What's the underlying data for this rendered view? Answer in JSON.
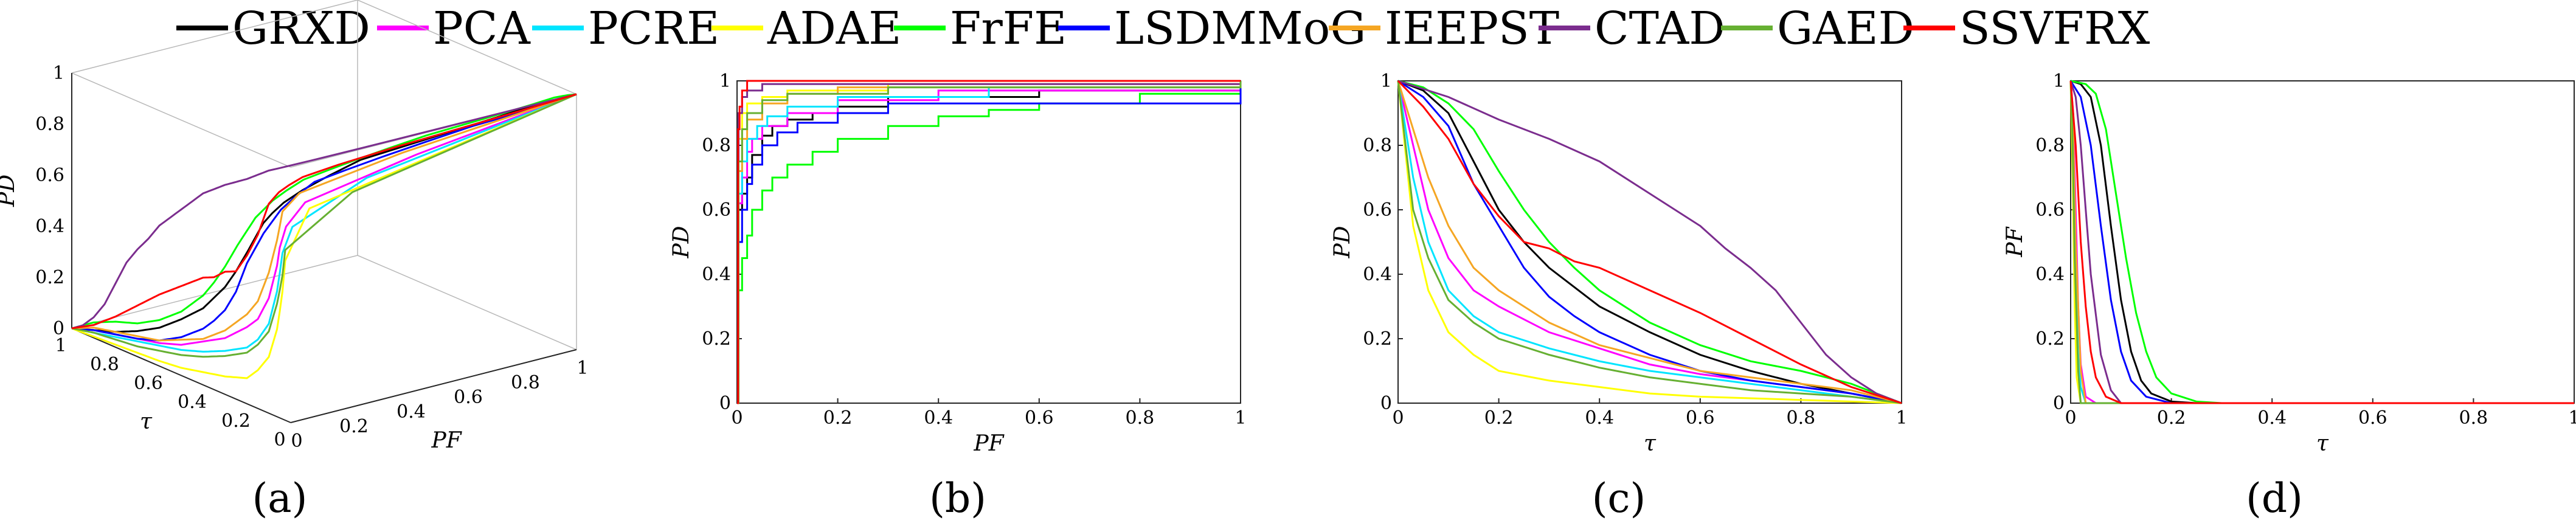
{
  "legend": [
    {
      "name": "GRXD",
      "color": "#000000"
    },
    {
      "name": "PCA",
      "color": "#ff00ff"
    },
    {
      "name": "PCRE",
      "color": "#00e5ff"
    },
    {
      "name": "ADAE",
      "color": "#ffff00"
    },
    {
      "name": "FrFE",
      "color": "#00ff00"
    },
    {
      "name": "LSDMMoG",
      "color": "#0000ff"
    },
    {
      "name": "IEEPST",
      "color": "#f5a623"
    },
    {
      "name": "CTAD",
      "color": "#7b2d8e"
    },
    {
      "name": "GAED",
      "color": "#66b032"
    },
    {
      "name": "SSVFRX",
      "color": "#ff0000"
    }
  ],
  "chart_data": [
    {
      "id": "a",
      "panel_label": "(a)",
      "type": "line",
      "subtype": "3d-roc",
      "x_label": "PF",
      "y_label": "τ",
      "z_label": "PD",
      "x_ticks": [
        "0",
        "0.2",
        "0.4",
        "0.6",
        "0.8",
        "1"
      ],
      "y_ticks": [
        "0",
        "0.2",
        "0.4",
        "0.6",
        "0.8",
        "1"
      ],
      "z_ticks": [
        "0",
        "0.2",
        "0.4",
        "0.6",
        "0.8",
        "1"
      ],
      "series": []
    },
    {
      "id": "b",
      "panel_label": "(b)",
      "type": "line",
      "x_label": "PF",
      "y_label": "PD",
      "xlim": [
        0,
        1
      ],
      "ylim": [
        0,
        1
      ],
      "x_ticks": [
        "0",
        "0.2",
        "0.4",
        "0.6",
        "0.8",
        "1"
      ],
      "y_ticks": [
        "0",
        "0.2",
        "0.4",
        "0.6",
        "0.8",
        "1"
      ],
      "series": [
        {
          "name": "GRXD",
          "x": [
            0,
            0.003,
            0.01,
            0.02,
            0.03,
            0.05,
            0.07,
            0.1,
            0.15,
            0.2,
            0.3,
            0.6,
            1.0
          ],
          "y": [
            0,
            0.6,
            0.65,
            0.7,
            0.77,
            0.83,
            0.86,
            0.88,
            0.9,
            0.92,
            0.95,
            0.97,
            1.0
          ]
        },
        {
          "name": "PCA",
          "x": [
            0,
            0.003,
            0.01,
            0.02,
            0.03,
            0.05,
            0.1,
            0.2,
            0.4,
            1.0
          ],
          "y": [
            0,
            0.62,
            0.7,
            0.78,
            0.82,
            0.86,
            0.9,
            0.94,
            0.97,
            1.0
          ]
        },
        {
          "name": "PCRE",
          "x": [
            0,
            0.003,
            0.01,
            0.02,
            0.04,
            0.06,
            0.1,
            0.2,
            0.5,
            1.0
          ],
          "y": [
            0,
            0.65,
            0.75,
            0.82,
            0.86,
            0.89,
            0.92,
            0.95,
            0.98,
            1.0
          ]
        },
        {
          "name": "ADAE",
          "x": [
            0,
            0.003,
            0.01,
            0.02,
            0.05,
            0.1,
            0.3,
            1.0
          ],
          "y": [
            0,
            0.82,
            0.9,
            0.93,
            0.95,
            0.97,
            0.99,
            1.0
          ]
        },
        {
          "name": "FrFE",
          "x": [
            0,
            0.003,
            0.01,
            0.02,
            0.03,
            0.05,
            0.07,
            0.1,
            0.15,
            0.2,
            0.3,
            0.4,
            0.5,
            0.6,
            0.8,
            1.0
          ],
          "y": [
            0,
            0.35,
            0.45,
            0.52,
            0.6,
            0.66,
            0.7,
            0.74,
            0.78,
            0.82,
            0.86,
            0.89,
            0.91,
            0.93,
            0.96,
            1.0
          ]
        },
        {
          "name": "LSDMMoG",
          "x": [
            0,
            0.003,
            0.01,
            0.02,
            0.03,
            0.05,
            0.08,
            0.12,
            0.2,
            0.3,
            1.0
          ],
          "y": [
            0,
            0.5,
            0.6,
            0.68,
            0.74,
            0.8,
            0.84,
            0.87,
            0.9,
            0.93,
            0.99
          ]
        },
        {
          "name": "IEEPST",
          "x": [
            0,
            0.003,
            0.01,
            0.02,
            0.05,
            0.1,
            0.2,
            1.0
          ],
          "y": [
            0,
            0.72,
            0.82,
            0.88,
            0.93,
            0.96,
            0.98,
            1.0
          ]
        },
        {
          "name": "CTAD",
          "x": [
            0,
            0.003,
            0.01,
            0.02,
            0.05,
            1.0
          ],
          "y": [
            0,
            0.9,
            0.95,
            0.97,
            0.99,
            1.0
          ]
        },
        {
          "name": "GAED",
          "x": [
            0,
            0.003,
            0.01,
            0.02,
            0.05,
            0.1,
            0.3,
            1.0
          ],
          "y": [
            0,
            0.75,
            0.85,
            0.9,
            0.94,
            0.96,
            0.98,
            1.0
          ]
        },
        {
          "name": "SSVFRX",
          "x": [
            0,
            0.002,
            0.005,
            0.01,
            0.02,
            1.0
          ],
          "y": [
            0,
            0.85,
            0.92,
            0.97,
            1.0,
            1.0
          ]
        }
      ]
    },
    {
      "id": "c",
      "panel_label": "(c)",
      "type": "line",
      "x_label": "τ",
      "y_label": "PD",
      "xlim": [
        0,
        1
      ],
      "ylim": [
        0,
        1
      ],
      "x_ticks": [
        "0",
        "0.2",
        "0.4",
        "0.6",
        "0.8",
        "1"
      ],
      "y_ticks": [
        "0",
        "0.2",
        "0.4",
        "0.6",
        "0.8",
        "1"
      ],
      "series": [
        {
          "name": "GRXD",
          "x": [
            0,
            0.05,
            0.1,
            0.15,
            0.2,
            0.25,
            0.3,
            0.35,
            0.4,
            0.5,
            0.6,
            0.7,
            0.8,
            0.9,
            1.0
          ],
          "y": [
            1.0,
            0.97,
            0.9,
            0.75,
            0.6,
            0.5,
            0.42,
            0.36,
            0.3,
            0.22,
            0.15,
            0.1,
            0.06,
            0.03,
            0.0
          ]
        },
        {
          "name": "PCA",
          "x": [
            0,
            0.03,
            0.06,
            0.1,
            0.15,
            0.2,
            0.3,
            0.4,
            0.5,
            0.6,
            0.7,
            0.8,
            0.9,
            1.0
          ],
          "y": [
            1.0,
            0.8,
            0.6,
            0.45,
            0.35,
            0.3,
            0.22,
            0.17,
            0.12,
            0.09,
            0.07,
            0.05,
            0.03,
            0.0
          ]
        },
        {
          "name": "PCRE",
          "x": [
            0,
            0.03,
            0.06,
            0.1,
            0.15,
            0.2,
            0.3,
            0.4,
            0.5,
            0.6,
            0.7,
            0.8,
            0.9,
            1.0
          ],
          "y": [
            1.0,
            0.7,
            0.5,
            0.35,
            0.27,
            0.22,
            0.17,
            0.13,
            0.1,
            0.08,
            0.06,
            0.04,
            0.02,
            0.0
          ]
        },
        {
          "name": "ADAE",
          "x": [
            0,
            0.03,
            0.06,
            0.1,
            0.15,
            0.2,
            0.3,
            0.4,
            0.5,
            0.6,
            0.7,
            0.8,
            0.9,
            1.0
          ],
          "y": [
            1.0,
            0.55,
            0.35,
            0.22,
            0.15,
            0.1,
            0.07,
            0.05,
            0.03,
            0.02,
            0.015,
            0.01,
            0.005,
            0.0
          ]
        },
        {
          "name": "FrFE",
          "x": [
            0,
            0.05,
            0.1,
            0.15,
            0.2,
            0.25,
            0.3,
            0.35,
            0.4,
            0.5,
            0.6,
            0.7,
            0.8,
            0.9,
            1.0
          ],
          "y": [
            1.0,
            0.98,
            0.93,
            0.85,
            0.72,
            0.6,
            0.5,
            0.42,
            0.35,
            0.25,
            0.18,
            0.13,
            0.1,
            0.06,
            0.0
          ]
        },
        {
          "name": "LSDMMoG",
          "x": [
            0,
            0.05,
            0.1,
            0.15,
            0.2,
            0.25,
            0.3,
            0.35,
            0.4,
            0.5,
            0.6,
            0.7,
            0.8,
            0.9,
            1.0
          ],
          "y": [
            1.0,
            0.95,
            0.86,
            0.68,
            0.55,
            0.42,
            0.33,
            0.27,
            0.22,
            0.15,
            0.1,
            0.07,
            0.05,
            0.03,
            0.0
          ]
        },
        {
          "name": "IEEPST",
          "x": [
            0,
            0.03,
            0.06,
            0.1,
            0.15,
            0.2,
            0.3,
            0.4,
            0.5,
            0.6,
            0.7,
            0.8,
            0.9,
            1.0
          ],
          "y": [
            1.0,
            0.85,
            0.7,
            0.55,
            0.42,
            0.35,
            0.25,
            0.18,
            0.14,
            0.1,
            0.08,
            0.06,
            0.04,
            0.0
          ]
        },
        {
          "name": "CTAD",
          "x": [
            0,
            0.1,
            0.2,
            0.3,
            0.4,
            0.5,
            0.6,
            0.65,
            0.7,
            0.75,
            0.8,
            0.85,
            0.9,
            0.95,
            1.0
          ],
          "y": [
            1.0,
            0.95,
            0.88,
            0.82,
            0.75,
            0.65,
            0.55,
            0.48,
            0.42,
            0.35,
            0.25,
            0.15,
            0.08,
            0.03,
            0.0
          ]
        },
        {
          "name": "GAED",
          "x": [
            0,
            0.03,
            0.06,
            0.1,
            0.15,
            0.2,
            0.3,
            0.4,
            0.5,
            0.6,
            0.7,
            0.8,
            0.9,
            1.0
          ],
          "y": [
            1.0,
            0.6,
            0.45,
            0.32,
            0.25,
            0.2,
            0.15,
            0.11,
            0.08,
            0.06,
            0.04,
            0.03,
            0.02,
            0.0
          ]
        },
        {
          "name": "SSVFRX",
          "x": [
            0,
            0.05,
            0.1,
            0.15,
            0.2,
            0.25,
            0.3,
            0.35,
            0.4,
            0.5,
            0.6,
            0.7,
            0.8,
            0.9,
            1.0
          ],
          "y": [
            1.0,
            0.92,
            0.82,
            0.68,
            0.58,
            0.5,
            0.48,
            0.44,
            0.42,
            0.35,
            0.28,
            0.2,
            0.12,
            0.05,
            0.0
          ]
        }
      ]
    },
    {
      "id": "d",
      "panel_label": "(d)",
      "type": "line",
      "x_label": "τ",
      "y_label": "PF",
      "xlim": [
        0,
        1
      ],
      "ylim": [
        0,
        1
      ],
      "x_ticks": [
        "0",
        "0.2",
        "0.4",
        "0.6",
        "0.8",
        "1"
      ],
      "y_ticks": [
        "0",
        "0.2",
        "0.4",
        "0.6",
        "0.8",
        "1"
      ],
      "series": [
        {
          "name": "GRXD",
          "x": [
            0,
            0.02,
            0.04,
            0.06,
            0.08,
            0.1,
            0.12,
            0.14,
            0.16,
            0.2,
            0.25,
            0.3,
            1.0
          ],
          "y": [
            1.0,
            0.99,
            0.95,
            0.8,
            0.55,
            0.32,
            0.16,
            0.07,
            0.03,
            0.005,
            0.0,
            0.0,
            0.0
          ]
        },
        {
          "name": "PCA",
          "x": [
            0,
            0.005,
            0.01,
            0.015,
            0.02,
            0.03,
            0.05,
            1.0
          ],
          "y": [
            1.0,
            0.9,
            0.6,
            0.3,
            0.12,
            0.02,
            0.0,
            0.0
          ]
        },
        {
          "name": "PCRE",
          "x": [
            0,
            0.005,
            0.01,
            0.015,
            0.02,
            0.03,
            1.0
          ],
          "y": [
            1.0,
            0.8,
            0.4,
            0.15,
            0.05,
            0.0,
            0.0
          ]
        },
        {
          "name": "ADAE",
          "x": [
            0,
            0.004,
            0.008,
            0.012,
            0.02,
            1.0
          ],
          "y": [
            1.0,
            0.7,
            0.3,
            0.08,
            0.0,
            0.0
          ]
        },
        {
          "name": "FrFE",
          "x": [
            0,
            0.03,
            0.05,
            0.07,
            0.09,
            0.11,
            0.13,
            0.15,
            0.17,
            0.2,
            0.25,
            0.3,
            0.4,
            1.0
          ],
          "y": [
            1.0,
            0.99,
            0.96,
            0.85,
            0.65,
            0.45,
            0.28,
            0.16,
            0.08,
            0.03,
            0.005,
            0.0,
            0.0,
            0.0
          ]
        },
        {
          "name": "LSDMMoG",
          "x": [
            0,
            0.02,
            0.04,
            0.06,
            0.08,
            0.1,
            0.12,
            0.15,
            0.2,
            1.0
          ],
          "y": [
            1.0,
            0.95,
            0.8,
            0.55,
            0.32,
            0.16,
            0.07,
            0.02,
            0.0,
            0.0
          ]
        },
        {
          "name": "IEEPST",
          "x": [
            0,
            0.005,
            0.01,
            0.02,
            0.03,
            1.0
          ],
          "y": [
            1.0,
            0.85,
            0.5,
            0.1,
            0.0,
            0.0
          ]
        },
        {
          "name": "CTAD",
          "x": [
            0,
            0.01,
            0.02,
            0.03,
            0.04,
            0.06,
            0.08,
            0.1,
            1.0
          ],
          "y": [
            1.0,
            0.95,
            0.8,
            0.6,
            0.4,
            0.15,
            0.04,
            0.0,
            0.0
          ]
        },
        {
          "name": "GAED",
          "x": [
            0,
            0.004,
            0.008,
            0.015,
            0.02,
            1.0
          ],
          "y": [
            1.0,
            0.8,
            0.45,
            0.1,
            0.0,
            0.0
          ]
        },
        {
          "name": "SSVFRX",
          "x": [
            0,
            0.01,
            0.02,
            0.03,
            0.04,
            0.05,
            0.07,
            0.1,
            1.0
          ],
          "y": [
            1.0,
            0.8,
            0.5,
            0.3,
            0.16,
            0.08,
            0.02,
            0.0,
            0.0
          ]
        }
      ]
    }
  ]
}
